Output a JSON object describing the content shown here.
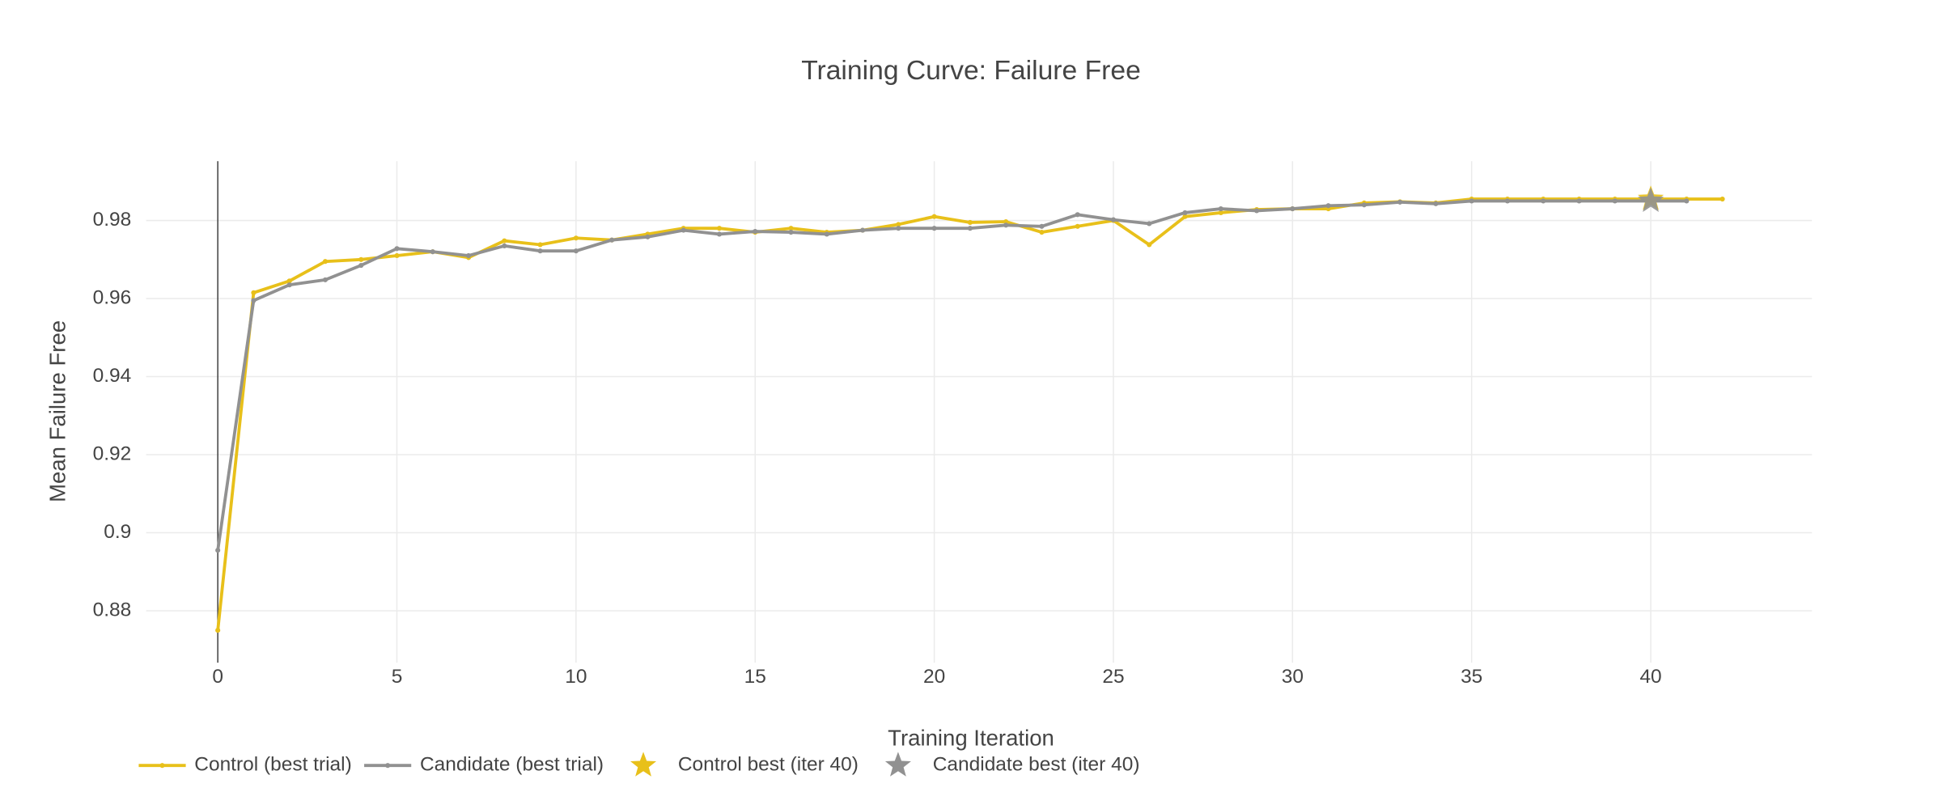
{
  "chart_data": {
    "type": "line",
    "title": "Training Curve: Failure Free",
    "x_label": "Training Iteration",
    "y_label": "Mean Failure Free",
    "x": [
      0,
      1,
      2,
      3,
      4,
      5,
      6,
      7,
      8,
      9,
      10,
      11,
      12,
      13,
      14,
      15,
      16,
      17,
      18,
      19,
      20,
      21,
      22,
      23,
      24,
      25,
      26,
      27,
      28,
      29,
      30,
      31,
      32,
      33,
      34,
      35,
      36,
      37,
      38,
      39,
      40,
      41,
      42
    ],
    "series": [
      {
        "name": "Control (best trial)",
        "color": "#e8c01a",
        "values": [
          0.875,
          0.9615,
          0.9645,
          0.9695,
          0.97,
          0.971,
          0.972,
          0.9705,
          0.9748,
          0.9738,
          0.9755,
          0.975,
          0.9765,
          0.978,
          0.978,
          0.977,
          0.978,
          0.977,
          0.9775,
          0.979,
          0.981,
          0.9795,
          0.9797,
          0.977,
          0.9785,
          0.98,
          0.9738,
          0.981,
          0.982,
          0.9828,
          0.983,
          0.983,
          0.9845,
          0.9848,
          0.9845,
          0.9855,
          0.9855,
          0.9855,
          0.9855,
          0.9855,
          0.9855,
          0.9855,
          0.9855
        ]
      },
      {
        "name": "Candidate (best trial)",
        "color": "#919191",
        "values": [
          0.8955,
          0.9595,
          0.9635,
          0.9648,
          0.9685,
          0.9728,
          0.972,
          0.971,
          0.9735,
          0.9722,
          0.9722,
          0.975,
          0.9758,
          0.9775,
          0.9765,
          0.9772,
          0.977,
          0.9765,
          0.9775,
          0.978,
          0.978,
          0.978,
          0.9788,
          0.9785,
          0.9815,
          0.9802,
          0.9792,
          0.982,
          0.983,
          0.9825,
          0.983,
          0.9838,
          0.984,
          0.9847,
          0.9843,
          0.985,
          0.985,
          0.985,
          0.985,
          0.985,
          0.985,
          0.985,
          null
        ]
      }
    ],
    "best_points": [
      {
        "name": "Control best (iter 40)",
        "color": "#e8c01a",
        "x": 40,
        "value": 0.9855
      },
      {
        "name": "Candidate best (iter 40)",
        "color": "#919191",
        "x": 40,
        "value": 0.985
      }
    ],
    "xlim": [
      -2,
      44.5
    ],
    "ylim": [
      0.8667,
      0.9952
    ],
    "xticks": [
      0,
      5,
      10,
      15,
      20,
      25,
      30,
      35,
      40
    ],
    "yticks": [
      0.88,
      0.9,
      0.92,
      0.94,
      0.96,
      0.98
    ],
    "grid": true
  }
}
